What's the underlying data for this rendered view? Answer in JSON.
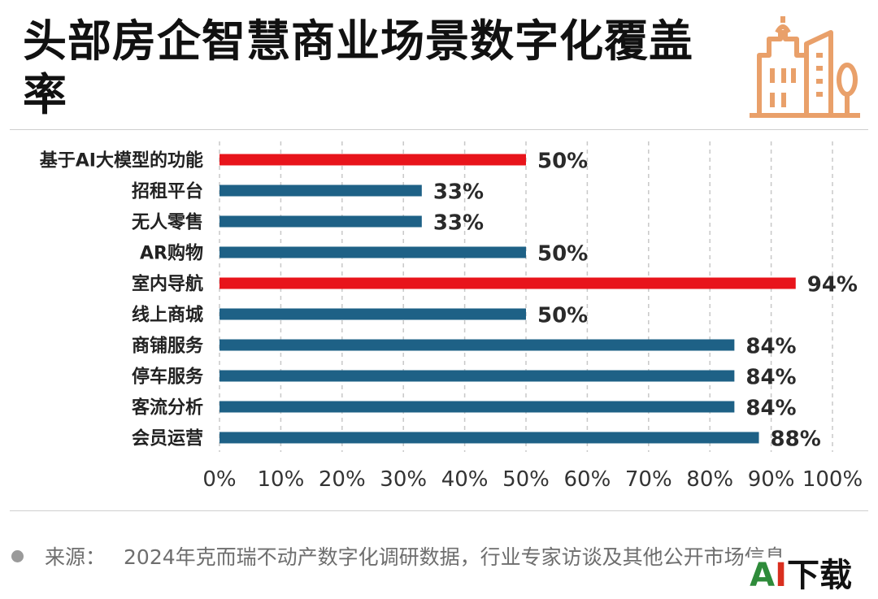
{
  "title": "头部房企智慧商业场景数字化覆盖率",
  "chart_data": {
    "type": "bar",
    "orientation": "horizontal",
    "categories": [
      "基于AI大模型的功能",
      "招租平台",
      "无人零售",
      "AR购物",
      "室内导航",
      "线上商城",
      "商铺服务",
      "停车服务",
      "客流分析",
      "会员运营"
    ],
    "values": [
      50,
      33,
      33,
      50,
      94,
      50,
      84,
      84,
      84,
      88
    ],
    "value_labels": [
      "50%",
      "33%",
      "33%",
      "50%",
      "94%",
      "50%",
      "84%",
      "84%",
      "84%",
      "88%"
    ],
    "highlighted": [
      true,
      false,
      false,
      false,
      true,
      false,
      false,
      false,
      false,
      false
    ],
    "xlim": [
      0,
      100
    ],
    "x_ticks": [
      "0%",
      "10%",
      "20%",
      "30%",
      "40%",
      "50%",
      "60%",
      "70%",
      "80%",
      "90%",
      "100%"
    ],
    "grid": "vertical dashed",
    "colors": {
      "bar": "#1e6186",
      "highlight": "#e8141b",
      "grid": "#c8c8c8"
    }
  },
  "source": {
    "label": "来源：",
    "text": "2024年克而瑞不动产数字化调研数据，行业专家访谈及其他公开市场信息"
  },
  "watermark": {
    "a": "A",
    "i": "I",
    "rest": "下载"
  },
  "logo_icon": "buildings-icon",
  "logo_color": "#e9a06a"
}
